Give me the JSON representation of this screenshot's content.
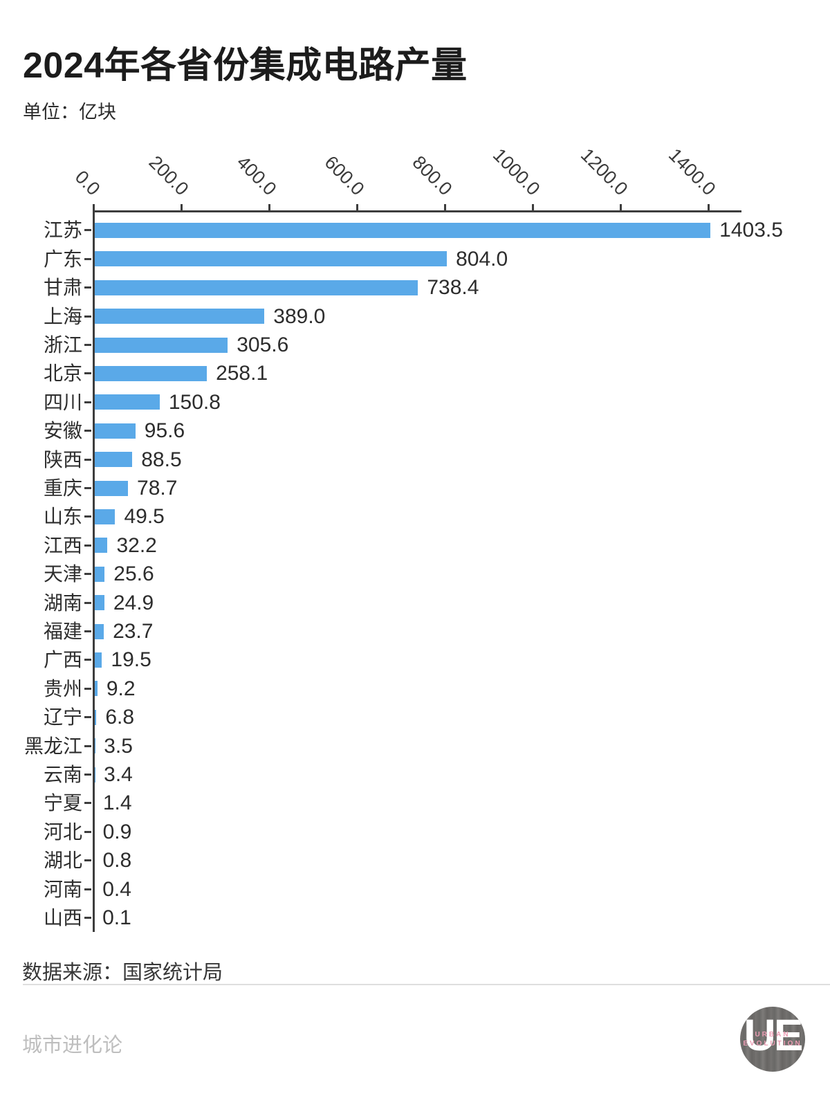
{
  "header": {
    "title": "2024年各省份集成电路产量",
    "unit_label": "单位：亿块"
  },
  "chart_data": {
    "type": "bar",
    "orientation": "horizontal",
    "title": "2024年各省份集成电路产量",
    "unit": "亿块",
    "xlabel": "",
    "ylabel": "",
    "grid": false,
    "legend": null,
    "xlim": [
      0,
      1474
    ],
    "xticks": [
      0.0,
      200.0,
      400.0,
      600.0,
      800.0,
      1000.0,
      1200.0,
      1400.0
    ],
    "xtick_labels": [
      "0.0",
      "200.0",
      "400.0",
      "600.0",
      "800.0",
      "1000.0",
      "1200.0",
      "1400.0"
    ],
    "categories": [
      "江苏",
      "广东",
      "甘肃",
      "上海",
      "浙江",
      "北京",
      "四川",
      "安徽",
      "陕西",
      "重庆",
      "山东",
      "江西",
      "天津",
      "湖南",
      "福建",
      "广西",
      "贵州",
      "辽宁",
      "黑龙江",
      "云南",
      "宁夏",
      "河北",
      "湖北",
      "河南",
      "山西"
    ],
    "values": [
      1403.5,
      804.0,
      738.4,
      389.0,
      305.6,
      258.1,
      150.8,
      95.6,
      88.5,
      78.7,
      49.5,
      32.2,
      25.6,
      24.9,
      23.7,
      19.5,
      9.2,
      6.8,
      3.5,
      3.4,
      1.4,
      0.9,
      0.8,
      0.4,
      0.1
    ],
    "value_labels": [
      "1403.5",
      "804.0",
      "738.4",
      "389.0",
      "305.6",
      "258.1",
      "150.8",
      "95.6",
      "88.5",
      "78.7",
      "49.5",
      "32.2",
      "25.6",
      "24.9",
      "23.7",
      "19.5",
      "9.2",
      "6.8",
      "3.5",
      "3.4",
      "1.4",
      "0.9",
      "0.8",
      "0.4",
      "0.1"
    ],
    "bar_color": "#5AA9E8"
  },
  "footer": {
    "source": "数据来源：国家统计局",
    "watermark": "城市进化论",
    "logo": {
      "initials": "UE",
      "line1": "URBAN",
      "line2": "EVOLUTION"
    }
  },
  "colors": {
    "bar": "#5AA9E8",
    "axis": "#3d3d3d",
    "text": "#2d2d2d",
    "watermark": "#bebebe",
    "divider": "#dedede",
    "logo_pink": "#eb9cb3",
    "logo_gray": "#6f6d6b"
  }
}
